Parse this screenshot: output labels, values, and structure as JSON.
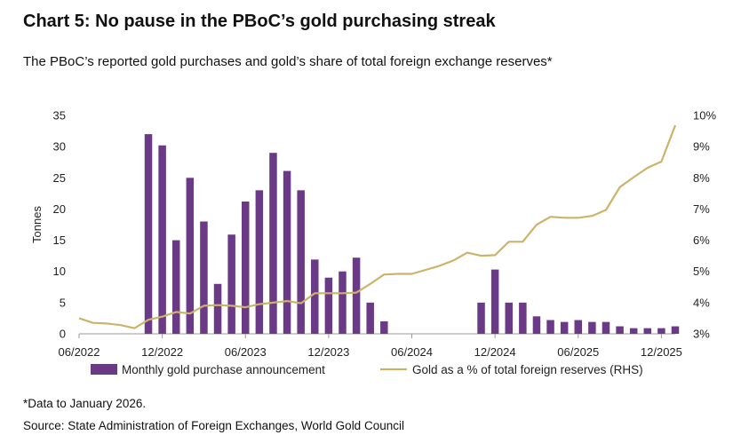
{
  "title": "Chart 5: No pause in the PBoC’s gold purchasing streak",
  "subtitle": "The PBoC’s reported gold purchases and gold’s share of total foreign exchange reserves*",
  "footnote": "*Data to January 2026.",
  "source": "Source: State Administration of Foreign Exchanges, World Gold Council",
  "colors": {
    "bar": "#6b3a87",
    "line": "#cdb36a",
    "axis": "#999999",
    "text": "#222222"
  },
  "chart_data": {
    "type": "bar+line",
    "months": [
      "2022-06",
      "2022-07",
      "2022-08",
      "2022-09",
      "2022-10",
      "2022-11",
      "2022-12",
      "2023-01",
      "2023-02",
      "2023-03",
      "2023-04",
      "2023-05",
      "2023-06",
      "2023-07",
      "2023-08",
      "2023-09",
      "2023-10",
      "2023-11",
      "2023-12",
      "2024-01",
      "2024-02",
      "2024-03",
      "2024-04",
      "2024-05",
      "2024-06",
      "2024-07",
      "2024-08",
      "2024-09",
      "2024-10",
      "2024-11",
      "2024-12",
      "2025-01",
      "2025-02",
      "2025-03",
      "2025-04",
      "2025-05",
      "2025-06",
      "2025-07",
      "2025-08",
      "2025-09",
      "2025-10",
      "2025-11",
      "2025-12",
      "2026-01"
    ],
    "x_tick_labels": [
      "06/2022",
      "12/2022",
      "06/2023",
      "12/2023",
      "06/2024",
      "12/2024",
      "06/2025",
      "12/2025"
    ],
    "ylabel": "Tonnes",
    "ylim": [
      0,
      35
    ],
    "y_ticks": [
      "0",
      "5",
      "10",
      "15",
      "20",
      "25",
      "30",
      "35"
    ],
    "y2lim": [
      3,
      10
    ],
    "y2_ticks": [
      "3%",
      "4%",
      "5%",
      "6%",
      "7%",
      "8%",
      "9%",
      "10%"
    ],
    "legend_position": "bottom",
    "series": [
      {
        "name": "Monthly gold purchase announcement",
        "kind": "bar",
        "axis": "left",
        "values": [
          0,
          0,
          0,
          0,
          0,
          32,
          30.2,
          15,
          25,
          18,
          8,
          15.9,
          21.2,
          23,
          29,
          26.1,
          23,
          11.9,
          9,
          10,
          12.2,
          5,
          2,
          0,
          0,
          0,
          0,
          0,
          0,
          5,
          10.3,
          5,
          5,
          2.8,
          2.2,
          1.9,
          2.2,
          1.9,
          1.9,
          1.2,
          0.9,
          0.9,
          0.9,
          1.2
        ]
      },
      {
        "name": "Gold as a % of total foreign reserves (RHS)",
        "kind": "line",
        "axis": "right",
        "values": [
          3.5,
          3.35,
          3.33,
          3.28,
          3.18,
          3.45,
          3.55,
          3.7,
          3.65,
          3.9,
          3.92,
          3.9,
          3.85,
          3.95,
          4.0,
          4.05,
          3.98,
          4.3,
          4.3,
          4.3,
          4.32,
          4.6,
          4.9,
          4.92,
          4.92,
          5.05,
          5.18,
          5.35,
          5.6,
          5.5,
          5.52,
          5.95,
          5.95,
          6.5,
          6.75,
          6.72,
          6.72,
          6.78,
          6.97,
          7.7,
          8.02,
          8.32,
          8.52,
          9.68
        ]
      }
    ]
  }
}
